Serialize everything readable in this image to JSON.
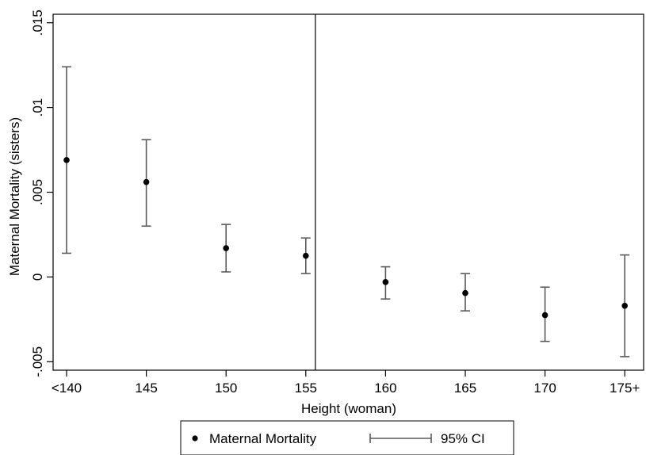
{
  "chart_data": {
    "type": "scatter",
    "title": "",
    "xlabel": "Height (woman)",
    "ylabel": "Maternal Mortality (sisters)",
    "categories": [
      "<140",
      "145",
      "150",
      "155",
      "160",
      "165",
      "170",
      "175+"
    ],
    "ylim": [
      -0.0055,
      0.0155
    ],
    "yticks": [
      {
        "value": -0.005,
        "label": "-.005"
      },
      {
        "value": 0,
        "label": "0"
      },
      {
        "value": 0.005,
        "label": ".005"
      },
      {
        "value": 0.01,
        "label": ".01"
      },
      {
        "value": 0.015,
        "label": ".015"
      }
    ],
    "reference_line_after_category": "155",
    "grid": false,
    "legend_position": "bottom",
    "series": [
      {
        "name": "Maternal Mortality",
        "kind": "point",
        "values": [
          0.0069,
          0.0056,
          0.0017,
          0.00125,
          -0.0003,
          -0.00095,
          -0.00225,
          -0.0017
        ]
      },
      {
        "name": "95% CI",
        "kind": "errorbar",
        "lower": [
          0.0014,
          0.003,
          0.0003,
          0.0002,
          -0.0013,
          -0.002,
          -0.0038,
          -0.0047
        ],
        "upper": [
          0.0124,
          0.0081,
          0.0031,
          0.0023,
          0.0006,
          0.0002,
          -0.0006,
          0.0013
        ]
      }
    ]
  }
}
